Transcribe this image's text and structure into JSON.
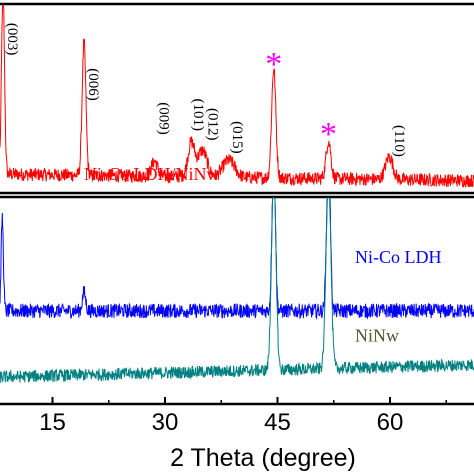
{
  "chart_data": {
    "type": "line",
    "xlabel": "2 Theta (degree)",
    "x_ticks": [
      15,
      30,
      45,
      60
    ],
    "x_tick_labels": [
      "15",
      "30",
      "45",
      "60"
    ],
    "xlim": [
      8,
      72
    ],
    "grid": false,
    "panels": [
      {
        "name": "top",
        "series": [
          {
            "name": "Ni-Co LDH/NiNw",
            "color": "#ff0000",
            "baseline": 0.1,
            "peaks": [
              {
                "x": 8.4,
                "height": 0.97,
                "width": 0.2
              },
              {
                "x": 19.2,
                "height": 0.7,
                "width": 0.25
              },
              {
                "x": 28.6,
                "height": 0.08,
                "width": 0.4
              },
              {
                "x": 33.5,
                "height": 0.18,
                "width": 0.45
              },
              {
                "x": 35.0,
                "height": 0.14,
                "width": 0.6
              },
              {
                "x": 38.5,
                "height": 0.09,
                "width": 0.8
              },
              {
                "x": 44.5,
                "height": 0.58,
                "width": 0.28
              },
              {
                "x": 51.8,
                "height": 0.2,
                "width": 0.32
              },
              {
                "x": 59.9,
                "height": 0.12,
                "width": 0.5
              }
            ],
            "noise": 0.035,
            "slope": -0.035
          }
        ],
        "annotations": [
          {
            "text": "(003)",
            "x": 8.4,
            "level": 0.9,
            "kind": "hkl"
          },
          {
            "text": "(006)",
            "x": 19.2,
            "level": 0.66,
            "kind": "hkl"
          },
          {
            "text": "(009)",
            "x": 28.6,
            "level": 0.48,
            "kind": "hkl"
          },
          {
            "text": "(101)",
            "x": 33.2,
            "level": 0.5,
            "kind": "hkl"
          },
          {
            "text": "(012)",
            "x": 35.1,
            "level": 0.45,
            "kind": "hkl"
          },
          {
            "text": "(015)",
            "x": 38.4,
            "level": 0.38,
            "kind": "hkl"
          },
          {
            "text": "(110)",
            "x": 60.0,
            "level": 0.36,
            "kind": "hkl"
          },
          {
            "text": "*",
            "x": 44.5,
            "level": 0.72,
            "kind": "star"
          },
          {
            "text": "*",
            "x": 51.8,
            "level": 0.35,
            "kind": "star"
          }
        ],
        "legend_text": "Ni-Co LDH/NiNw",
        "legend_color": "#ff0000"
      },
      {
        "name": "bottom",
        "series": [
          {
            "name": "Ni-Co LDH",
            "color": "#0000ff",
            "baseline": 0.45,
            "peaks": [
              {
                "x": 8.3,
                "height": 0.45,
                "width": 0.15
              },
              {
                "x": 19.2,
                "height": 0.09,
                "width": 0.22
              },
              {
                "x": 44.5,
                "height": 0.8,
                "width": 0.22
              },
              {
                "x": 51.8,
                "height": 0.8,
                "width": 0.24
              }
            ],
            "noise": 0.035,
            "slope": 0.0
          },
          {
            "name": "NiNw",
            "color": "#008080",
            "baseline": 0.13,
            "peaks": [
              {
                "x": 44.5,
                "height": 0.95,
                "width": 0.3
              },
              {
                "x": 51.8,
                "height": 0.95,
                "width": 0.32
              }
            ],
            "noise": 0.03,
            "slope": 0.06
          }
        ],
        "labels": [
          {
            "text": "Ni-Co LDH",
            "color": "#0000ff",
            "level": 0.71
          },
          {
            "text": "NiNw",
            "color": "#4b5a2a",
            "level": 0.33
          }
        ]
      }
    ]
  }
}
